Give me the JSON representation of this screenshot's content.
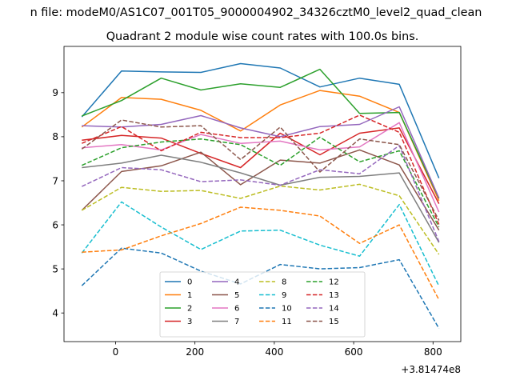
{
  "chart_data": {
    "type": "line",
    "suptitle": "n file: modeM0/AS1C07_001T05_9000004902_34326cztM0_level2_quad_clean",
    "title": "Quadrant 2 module wise count rates with 100.0s bins.",
    "xlabel": "",
    "ylabel": "",
    "x_offset_label": "+3.81474e8",
    "xlim": [
      -130,
      870
    ],
    "ylim": [
      3.35,
      10.05
    ],
    "xticks": [
      0,
      200,
      400,
      600,
      800
    ],
    "yticks": [
      4,
      5,
      6,
      7,
      8,
      9
    ],
    "x": [
      -85,
      15,
      115,
      215,
      315,
      415,
      515,
      615,
      715,
      815
    ],
    "legend": {
      "location": "lower center",
      "columns": 4
    },
    "series": [
      {
        "name": "0",
        "color": "#1f77b4",
        "dash": "solid",
        "values": [
          8.45,
          9.49,
          9.47,
          9.46,
          9.66,
          9.56,
          9.13,
          9.33,
          9.19,
          7.06
        ]
      },
      {
        "name": "1",
        "color": "#ff7f0e",
        "dash": "solid",
        "values": [
          8.22,
          8.89,
          8.85,
          8.6,
          8.13,
          8.72,
          9.05,
          8.92,
          8.55,
          6.55
        ]
      },
      {
        "name": "2",
        "color": "#2ca02c",
        "dash": "solid",
        "values": [
          8.47,
          8.82,
          9.33,
          9.06,
          9.2,
          9.12,
          9.53,
          8.53,
          8.55,
          6.6
        ]
      },
      {
        "name": "3",
        "color": "#d62728",
        "dash": "solid",
        "values": [
          7.92,
          8.03,
          7.97,
          7.62,
          7.3,
          8.08,
          7.59,
          8.08,
          8.2,
          6.48
        ]
      },
      {
        "name": "4",
        "color": "#9467bd",
        "dash": "solid",
        "values": [
          8.25,
          8.22,
          8.28,
          8.48,
          8.2,
          8.0,
          8.23,
          8.28,
          8.68,
          6.61
        ]
      },
      {
        "name": "5",
        "color": "#8c564b",
        "dash": "solid",
        "values": [
          6.33,
          7.21,
          7.34,
          7.65,
          6.91,
          7.47,
          7.4,
          7.7,
          7.36,
          5.88
        ]
      },
      {
        "name": "6",
        "color": "#e377c2",
        "dash": "solid",
        "values": [
          7.75,
          7.82,
          7.7,
          8.05,
          7.85,
          7.9,
          7.7,
          7.77,
          8.32,
          6.29
        ]
      },
      {
        "name": "7",
        "color": "#7f7f7f",
        "dash": "solid",
        "values": [
          7.3,
          7.4,
          7.58,
          7.42,
          7.18,
          6.9,
          7.08,
          7.1,
          7.18,
          5.6
        ]
      },
      {
        "name": "8",
        "color": "#bcbd22",
        "dash": "dashed",
        "values": [
          6.33,
          6.85,
          6.76,
          6.78,
          6.6,
          6.88,
          6.79,
          6.92,
          6.66,
          5.33
        ]
      },
      {
        "name": "9",
        "color": "#17becf",
        "dash": "dashed",
        "values": [
          5.36,
          6.52,
          5.95,
          5.44,
          5.86,
          5.88,
          5.54,
          5.29,
          6.46,
          4.61
        ]
      },
      {
        "name": "10",
        "color": "#1f77b4",
        "dash": "dashed",
        "values": [
          4.62,
          5.47,
          5.36,
          4.95,
          4.66,
          5.1,
          5.0,
          5.03,
          5.21,
          3.65
        ]
      },
      {
        "name": "11",
        "color": "#ff7f0e",
        "dash": "dashed",
        "values": [
          5.38,
          5.43,
          5.75,
          6.03,
          6.4,
          6.33,
          6.2,
          5.58,
          6.0,
          4.3
        ]
      },
      {
        "name": "12",
        "color": "#2ca02c",
        "dash": "dashed",
        "values": [
          7.35,
          7.75,
          7.88,
          7.95,
          7.82,
          7.35,
          7.99,
          7.43,
          7.68,
          5.95
        ]
      },
      {
        "name": "13",
        "color": "#d62728",
        "dash": "dashed",
        "values": [
          7.85,
          8.23,
          7.68,
          8.1,
          7.98,
          7.98,
          8.08,
          8.49,
          8.1,
          6.01
        ]
      },
      {
        "name": "14",
        "color": "#9467bd",
        "dash": "dashed",
        "values": [
          6.87,
          7.3,
          7.25,
          6.98,
          7.02,
          6.9,
          7.25,
          7.16,
          7.8,
          5.62
        ]
      },
      {
        "name": "15",
        "color": "#8c564b",
        "dash": "dashed",
        "values": [
          7.72,
          8.38,
          8.22,
          8.25,
          7.48,
          8.22,
          7.2,
          7.95,
          7.82,
          6.1
        ]
      }
    ]
  }
}
